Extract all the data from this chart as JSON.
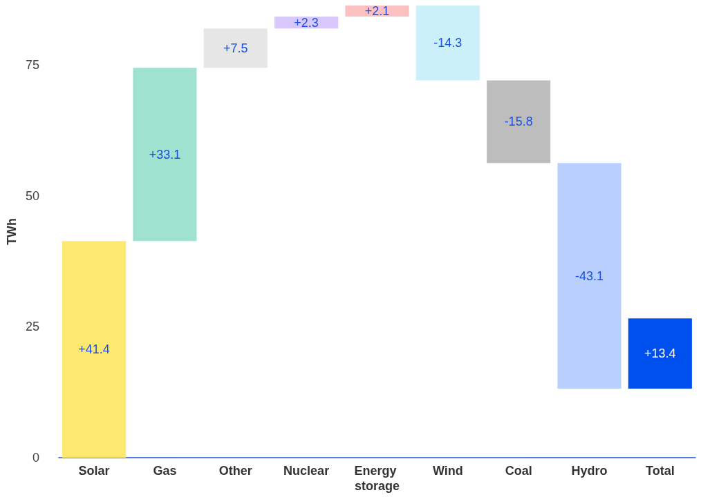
{
  "chart_data": {
    "type": "bar",
    "ylabel": "TWh",
    "categories": [
      "Solar",
      "Gas",
      "Other",
      "Nuclear",
      "Energy storage",
      "Wind",
      "Coal",
      "Hydro",
      "Total"
    ],
    "values": [
      41.4,
      33.1,
      7.5,
      2.3,
      2.1,
      -14.3,
      -15.8,
      -43.1,
      13.4
    ],
    "base": [
      0,
      41.4,
      74.5,
      82,
      84.3,
      86.4,
      72.1,
      56.3,
      13.2
    ],
    "colors": [
      "#fde870",
      "#a0e2d0",
      "#e6e6e6",
      "#d8c8fb",
      "#fcc0c0",
      "#ccf0fa",
      "#bdbdbd",
      "#b9cffd",
      "#0050f0"
    ],
    "value_labels": [
      "+41.4",
      "+33.1",
      "+7.5",
      "+2.3",
      "+2.1",
      "-14.3",
      "-15.8",
      "-43.1",
      "+13.4"
    ],
    "ylim": [
      0,
      86.4
    ],
    "yticks": [
      0,
      25,
      50,
      75
    ],
    "grid": false
  }
}
